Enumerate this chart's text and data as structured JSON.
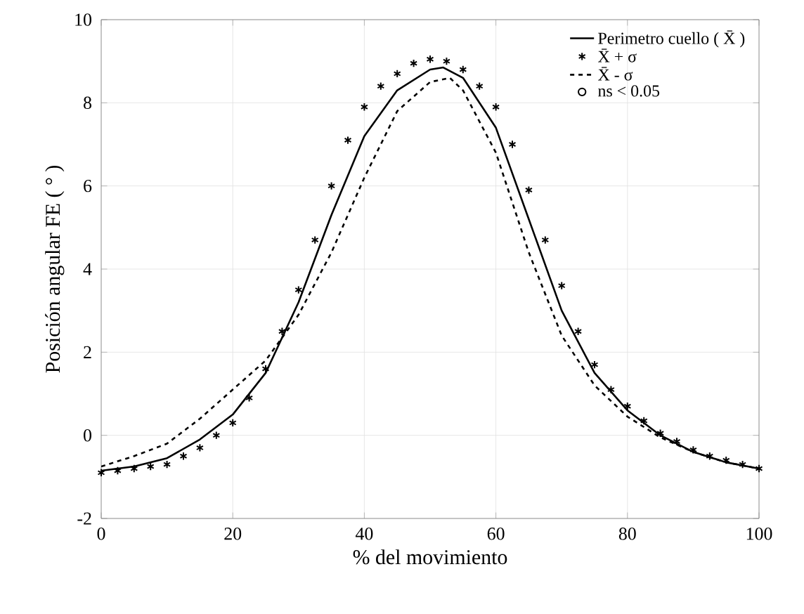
{
  "chart_data": {
    "type": "line",
    "xlabel": "% del movimiento",
    "ylabel": "Posición angular FE ( ° )",
    "xlim": [
      0,
      100
    ],
    "ylim": [
      -2,
      10
    ],
    "xticks": [
      0,
      20,
      40,
      60,
      80,
      100
    ],
    "yticks": [
      -2,
      0,
      2,
      4,
      6,
      8,
      10
    ],
    "grid": true,
    "legend": "top right",
    "series": [
      {
        "name": "Perimetro cuello ( X̄ )",
        "type": "line",
        "line_style": "solid",
        "marker": "none",
        "color": "#000000",
        "x": [
          0,
          5,
          10,
          15,
          20,
          25,
          30,
          35,
          40,
          45,
          50,
          52,
          55,
          60,
          65,
          70,
          75,
          80,
          85,
          90,
          95,
          100
        ],
        "values": [
          -0.85,
          -0.75,
          -0.55,
          -0.1,
          0.5,
          1.5,
          3.2,
          5.3,
          7.2,
          8.3,
          8.8,
          8.85,
          8.6,
          7.4,
          5.2,
          3.0,
          1.5,
          0.6,
          0.0,
          -0.4,
          -0.65,
          -0.8
        ]
      },
      {
        "name": "X̄ + σ",
        "type": "scatter",
        "marker": "cross",
        "color": "#000000",
        "x": [
          0,
          2.5,
          5,
          7.5,
          10,
          12.5,
          15,
          17.5,
          20,
          22.5,
          25,
          27.5,
          30,
          32.5,
          35,
          37.5,
          40,
          42.5,
          45,
          47.5,
          50,
          52.5,
          55,
          57.5,
          60,
          62.5,
          65,
          67.5,
          70,
          72.5,
          75,
          77.5,
          80,
          82.5,
          85,
          87.5,
          90,
          92.5,
          95,
          97.5,
          100
        ],
        "values": [
          -0.9,
          -0.85,
          -0.8,
          -0.75,
          -0.7,
          -0.5,
          -0.3,
          0.0,
          0.3,
          0.9,
          1.6,
          2.5,
          3.5,
          4.7,
          6.0,
          7.1,
          7.9,
          8.4,
          8.7,
          8.95,
          9.05,
          9.0,
          8.8,
          8.4,
          7.9,
          7.0,
          5.9,
          4.7,
          3.6,
          2.5,
          1.7,
          1.1,
          0.7,
          0.35,
          0.05,
          -0.15,
          -0.35,
          -0.5,
          -0.6,
          -0.7,
          -0.8
        ]
      },
      {
        "name": "X̄ -  σ",
        "type": "line",
        "line_style": "dashed",
        "marker": "none",
        "color": "#000000",
        "x": [
          0,
          5,
          10,
          15,
          20,
          25,
          30,
          35,
          40,
          45,
          50,
          53,
          55,
          60,
          65,
          70,
          75,
          80,
          85,
          90,
          95,
          100
        ],
        "values": [
          -0.75,
          -0.5,
          -0.2,
          0.4,
          1.1,
          1.8,
          2.9,
          4.4,
          6.2,
          7.8,
          8.5,
          8.6,
          8.3,
          6.8,
          4.4,
          2.4,
          1.2,
          0.45,
          -0.05,
          -0.4,
          -0.65,
          -0.8
        ]
      },
      {
        "name": "ns < 0.05",
        "type": "scatter",
        "marker": "circle",
        "color": "#000000"
      }
    ]
  }
}
